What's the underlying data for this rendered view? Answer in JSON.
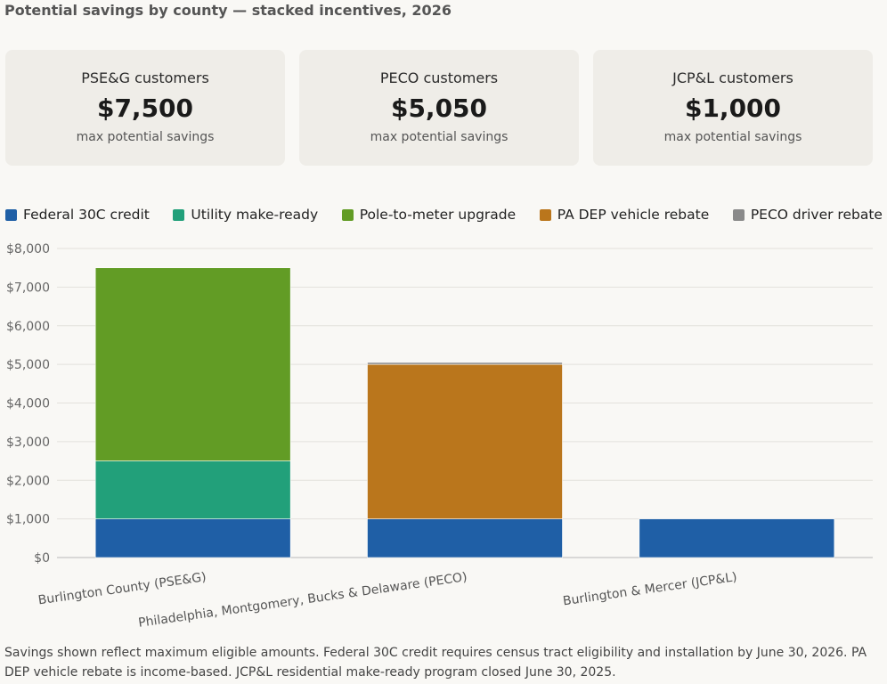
{
  "header": {
    "title": "Potential savings by county — stacked incentives, 2026"
  },
  "cards": [
    {
      "label": "PSE&G customers",
      "value": "$7,500",
      "sub": "max potential savings"
    },
    {
      "label": "PECO customers",
      "value": "$5,050",
      "sub": "max potential savings"
    },
    {
      "label": "JCP&L customers",
      "value": "$1,000",
      "sub": "max potential savings"
    }
  ],
  "legend": [
    {
      "label": "Federal 30C credit",
      "color": "#1f5fa6"
    },
    {
      "label": "Utility make-ready",
      "color": "#22a07a"
    },
    {
      "label": "Pole-to-meter upgrade",
      "color": "#629c25"
    },
    {
      "label": "PA DEP vehicle rebate",
      "color": "#ba761c"
    },
    {
      "label": "PECO driver rebate",
      "color": "#8a8a8a"
    }
  ],
  "chart_data": {
    "type": "bar",
    "stacked": true,
    "categories": [
      "Burlington County (PSE&G)",
      "Philadelphia, Montgomery, Bucks & Delaware (PECO)",
      "Burlington & Mercer (JCP&L)"
    ],
    "series": [
      {
        "name": "Federal 30C credit",
        "color": "#1f5fa6",
        "values": [
          1000,
          1000,
          1000
        ]
      },
      {
        "name": "Utility make-ready",
        "color": "#22a07a",
        "values": [
          1500,
          0,
          0
        ]
      },
      {
        "name": "Pole-to-meter upgrade",
        "color": "#629c25",
        "values": [
          5000,
          0,
          0
        ]
      },
      {
        "name": "PA DEP vehicle rebate",
        "color": "#ba761c",
        "values": [
          0,
          4000,
          0
        ]
      },
      {
        "name": "PECO driver rebate",
        "color": "#8a8a8a",
        "values": [
          0,
          50,
          0
        ]
      }
    ],
    "ylim": [
      0,
      8000
    ],
    "yticks": [
      0,
      1000,
      2000,
      3000,
      4000,
      5000,
      6000,
      7000,
      8000
    ],
    "ytick_labels": [
      "$0",
      "$1,000",
      "$2,000",
      "$3,000",
      "$4,000",
      "$5,000",
      "$6,000",
      "$7,000",
      "$8,000"
    ],
    "grid": true,
    "legend_position": "top"
  },
  "footnote": "Savings shown reflect maximum eligible amounts. Federal 30C credit requires census tract eligibility and installation by June 30, 2026. PA DEP vehicle rebate is income-based. JCP&L residential make-ready program closed June 30, 2025."
}
